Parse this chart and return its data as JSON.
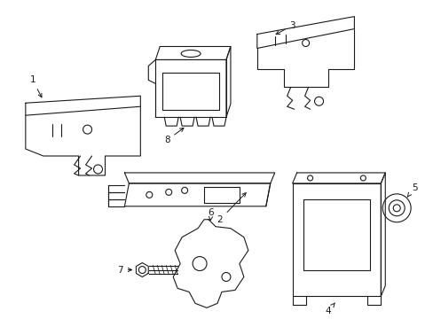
{
  "background_color": "#ffffff",
  "line_color": "#1a1a1a",
  "line_width": 0.8,
  "figsize": [
    4.89,
    3.6
  ],
  "dpi": 100
}
